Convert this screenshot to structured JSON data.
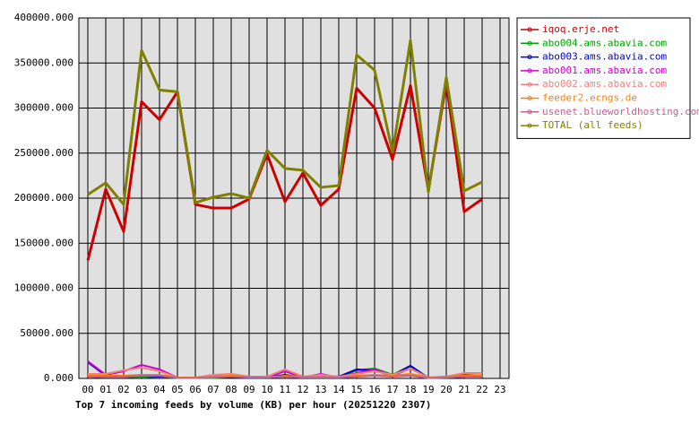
{
  "chart_data": {
    "type": "line",
    "title": "Top 7 incoming feeds by volume (KB) per hour (20251220 2307)",
    "categories": [
      "00",
      "01",
      "02",
      "03",
      "04",
      "05",
      "06",
      "07",
      "08",
      "09",
      "10",
      "11",
      "12",
      "13",
      "14",
      "15",
      "16",
      "17",
      "18",
      "19",
      "20",
      "21",
      "22",
      "23"
    ],
    "ylim": [
      0,
      400000
    ],
    "yticks": [
      {
        "value": 0,
        "label": "0.000"
      },
      {
        "value": 50000,
        "label": "50000.000"
      },
      {
        "value": 100000,
        "label": "100000.000"
      },
      {
        "value": 150000,
        "label": "150000.000"
      },
      {
        "value": 200000,
        "label": "200000.000"
      },
      {
        "value": 250000,
        "label": "250000.000"
      },
      {
        "value": 300000,
        "label": "300000.000"
      },
      {
        "value": 350000,
        "label": "350000.000"
      },
      {
        "value": 400000,
        "label": "400000.000"
      }
    ],
    "grid": true,
    "legend": "right",
    "series": [
      {
        "name": "iqoq.erje.net",
        "color": "#cc0000",
        "values": [
          131000,
          210000,
          163000,
          307000,
          287000,
          318000,
          193000,
          189000,
          189000,
          199000,
          249000,
          196000,
          228000,
          192000,
          210000,
          322000,
          300000,
          243000,
          325000,
          209000,
          328000,
          185000,
          199000,
          null
        ]
      },
      {
        "name": "abo004.ams.abavia.com",
        "color": "#00a000",
        "values": [
          2000,
          1000,
          1000,
          2000,
          1000,
          500,
          500,
          500,
          1000,
          500,
          1000,
          3000,
          1000,
          2000,
          1000,
          9000,
          11000,
          4000,
          14000,
          500,
          1000,
          2000,
          2000,
          null
        ]
      },
      {
        "name": "abo003.ams.abavia.com",
        "color": "#0000cc",
        "values": [
          18000,
          3000,
          2000,
          3000,
          2000,
          500,
          500,
          1000,
          1000,
          500,
          1000,
          4000,
          1000,
          3000,
          2000,
          10000,
          9000,
          3000,
          14000,
          500,
          1000,
          2000,
          2000,
          null
        ]
      },
      {
        "name": "abo001.ams.abavia.com",
        "color": "#cc00cc",
        "values": [
          19000,
          4000,
          8000,
          15000,
          10000,
          1000,
          500,
          3000,
          2000,
          1000,
          1000,
          8000,
          1000,
          5000,
          1000,
          6000,
          10000,
          3000,
          11000,
          1000,
          1000,
          4000,
          3000,
          null
        ]
      },
      {
        "name": "abo002.ams.abavia.com",
        "color": "#f08080",
        "values": [
          5000,
          5000,
          9000,
          12000,
          8000,
          1000,
          1000,
          4000,
          5000,
          2000,
          2000,
          10000,
          2000,
          4000,
          2000,
          5000,
          8000,
          4000,
          11000,
          1000,
          2000,
          6000,
          6000,
          null
        ]
      },
      {
        "name": "feeder2.ecngs.de",
        "color": "#ff8000",
        "values": [
          3000,
          3000,
          3000,
          4000,
          4000,
          1000,
          1000,
          2000,
          3000,
          2000,
          1000,
          3000,
          2000,
          2000,
          1000,
          3000,
          4000,
          3000,
          5000,
          1000,
          2000,
          3000,
          3000,
          null
        ]
      },
      {
        "name": "usenet.blueworldhosting.com",
        "color": "#c06090",
        "values": [
          2000,
          2000,
          2000,
          3000,
          3000,
          500,
          500,
          1000,
          2000,
          1000,
          1000,
          2000,
          1000,
          1000,
          1000,
          2000,
          3000,
          2000,
          3000,
          500,
          1000,
          2000,
          2000,
          null
        ]
      },
      {
        "name": "TOTAL (all feeds)",
        "color": "#808000",
        "values": [
          204000,
          217000,
          193000,
          364000,
          320000,
          318000,
          195000,
          201000,
          205000,
          200000,
          253000,
          233000,
          231000,
          212000,
          214000,
          359000,
          342000,
          251000,
          375000,
          207000,
          334000,
          208000,
          218000,
          null
        ]
      }
    ]
  }
}
